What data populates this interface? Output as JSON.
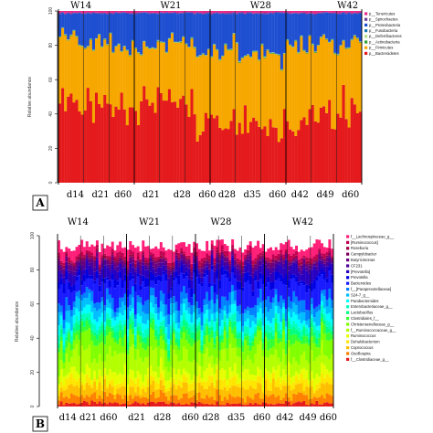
{
  "chart_data": [
    {
      "panel": "A",
      "type": "bar",
      "stacked": true,
      "ylabel": "Relative abundance",
      "ylim": [
        0,
        100
      ],
      "yticks": [
        0,
        20,
        40,
        60,
        80,
        100
      ],
      "week_labels": [
        "W14",
        "W21",
        "W28",
        "W42"
      ],
      "day_labels": [
        "d14",
        "d21",
        "d60",
        "d21",
        "d28",
        "d60",
        "d28",
        "d35",
        "d60",
        "d42",
        "d49",
        "d60"
      ],
      "n_samples": 108,
      "series": [
        {
          "name": "p__Bacteroidetes",
          "color": "#e41a1c",
          "segments": [
            [
              0,
              8,
              50
            ],
            [
              8,
              18,
              44
            ],
            [
              18,
              29,
              46
            ],
            [
              29,
              39,
              48
            ],
            [
              39,
              49,
              46
            ],
            [
              49,
              61,
              36
            ],
            [
              61,
              71,
              40
            ],
            [
              71,
              80,
              34
            ],
            [
              80,
              91,
              36
            ],
            [
              91,
              100,
              40
            ],
            [
              100,
              108,
              44
            ]
          ]
        },
        {
          "name": "p__Firmicutes",
          "color": "#f7a800",
          "segments": [
            [
              0,
              8,
              35
            ],
            [
              8,
              18,
              38
            ],
            [
              18,
              29,
              34
            ],
            [
              29,
              39,
              33
            ],
            [
              39,
              49,
              35
            ],
            [
              49,
              61,
              40
            ],
            [
              61,
              71,
              38
            ],
            [
              71,
              80,
              42
            ],
            [
              80,
              91,
              44
            ],
            [
              91,
              100,
              40
            ],
            [
              100,
              108,
              38
            ]
          ]
        },
        {
          "name": "p__Actinobacteria",
          "color": "#33a02c",
          "segments": [
            [
              0,
              108,
              0.3
            ]
          ]
        },
        {
          "name": "p__Deferribacteres",
          "color": "#b2df8a",
          "segments": [
            [
              0,
              108,
              0.2
            ]
          ]
        },
        {
          "name": "p__Fusobacteria",
          "color": "#1f78b4",
          "segments": [
            [
              0,
              108,
              0.2
            ]
          ]
        },
        {
          "name": "p__Proteobacteria",
          "color": "#1f4fd1",
          "segments": [
            [
              0,
              8,
              13
            ],
            [
              8,
              18,
              16
            ],
            [
              18,
              29,
              18
            ],
            [
              29,
              39,
              17
            ],
            [
              39,
              49,
              17
            ],
            [
              49,
              61,
              22
            ],
            [
              61,
              71,
              20
            ],
            [
              71,
              80,
              22
            ],
            [
              80,
              91,
              18
            ],
            [
              91,
              100,
              18
            ],
            [
              100,
              108,
              16
            ]
          ]
        },
        {
          "name": "p__Spirochaetes",
          "color": "#6a3d9a",
          "segments": [
            [
              0,
              108,
              0.5
            ]
          ]
        },
        {
          "name": "p__Tenericutes",
          "color": "#e7298a",
          "segments": [
            [
              0,
              108,
              1.0
            ]
          ]
        }
      ]
    },
    {
      "panel": "B",
      "type": "bar",
      "stacked": true,
      "ylabel": "Relative abundance",
      "ylim": [
        0,
        100
      ],
      "yticks": [
        0,
        20,
        40,
        60,
        80,
        100
      ],
      "week_labels": [
        "W14",
        "W21",
        "W28",
        "W42"
      ],
      "day_labels": [
        "d14",
        "d21",
        "d60",
        "d21",
        "d28",
        "d60",
        "d28",
        "d35",
        "d60",
        "d42",
        "d49",
        "d60"
      ],
      "n_samples": 108,
      "series": [
        {
          "name": "f__Clostridiaceae_g__",
          "color": "#e41a1c",
          "segments": [
            [
              0,
              108,
              2
            ]
          ]
        },
        {
          "name": "Oscillospira",
          "color": "#ff7f00",
          "segments": [
            [
              0,
              108,
              4
            ]
          ]
        },
        {
          "name": "Coprococcus",
          "color": "#ffbf00",
          "segments": [
            [
              0,
              108,
              5
            ]
          ]
        },
        {
          "name": "Dehalobacterium",
          "color": "#ffe600",
          "segments": [
            [
              0,
              108,
              4
            ]
          ]
        },
        {
          "name": "Ruminococcus",
          "color": "#e6ff00",
          "segments": [
            [
              0,
              108,
              5
            ]
          ]
        },
        {
          "name": "f__Ruminococcaceae_g__",
          "color": "#b3ff00",
          "segments": [
            [
              0,
              108,
              9
            ]
          ]
        },
        {
          "name": "Christensenellaceae_g__",
          "color": "#80ff00",
          "segments": [
            [
              0,
              108,
              8
            ]
          ]
        },
        {
          "name": "Clostridiales_f__",
          "color": "#33ff33",
          "segments": [
            [
              0,
              108,
              4
            ]
          ]
        },
        {
          "name": "Lactobacillus",
          "color": "#00ff80",
          "segments": [
            [
              0,
              108,
              3
            ]
          ]
        },
        {
          "name": "Enterobacteriaceae_g__",
          "color": "#00ffbf",
          "segments": [
            [
              0,
              108,
              3
            ]
          ]
        },
        {
          "name": "Parabacteroides",
          "color": "#00ffff",
          "segments": [
            [
              0,
              108,
              4
            ]
          ]
        },
        {
          "name": "S24-7_g__",
          "color": "#00bfff",
          "segments": [
            [
              0,
              108,
              5
            ]
          ]
        },
        {
          "name": "f__[Paraprevotellaceae]",
          "color": "#0080ff",
          "segments": [
            [
              0,
              108,
              5
            ]
          ]
        },
        {
          "name": "Bacteroides",
          "color": "#1a1aff",
          "segments": [
            [
              0,
              108,
              10
            ]
          ]
        },
        {
          "name": "Prevotella",
          "color": "#0000e0",
          "segments": [
            [
              0,
              108,
              4
            ]
          ]
        },
        {
          "name": "[Prevotella]",
          "color": "#2a00c0",
          "segments": [
            [
              0,
              108,
              5
            ]
          ]
        },
        {
          "name": "CF231",
          "color": "#4b0099",
          "segments": [
            [
              0,
              108,
              2
            ]
          ]
        },
        {
          "name": "Butyricimonas",
          "color": "#6a0080",
          "segments": [
            [
              0,
              108,
              2
            ]
          ]
        },
        {
          "name": "Campylobacter",
          "color": "#800060",
          "segments": [
            [
              0,
              108,
              1
            ]
          ]
        },
        {
          "name": "Roseburia",
          "color": "#a00040",
          "segments": [
            [
              0,
              108,
              1
            ]
          ]
        },
        {
          "name": "[Ruminococcus]",
          "color": "#c00050",
          "segments": [
            [
              0,
              108,
              2
            ]
          ]
        },
        {
          "name": "f__Lachnospiraceae_g__",
          "color": "#ff1e78",
          "segments": [
            [
              0,
              108,
              5
            ]
          ]
        }
      ]
    }
  ],
  "panel_letters": [
    "A",
    "B"
  ]
}
